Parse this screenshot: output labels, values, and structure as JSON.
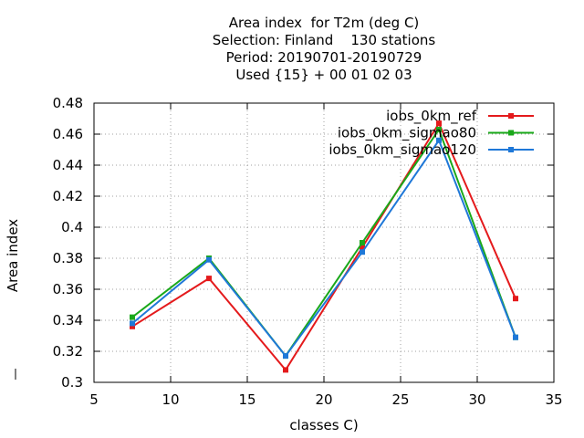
{
  "chart_data": {
    "type": "line",
    "title_lines": [
      "Area index  for T2m (deg C)",
      "Selection: Finland    130 stations",
      "Period: 20190701-20190729",
      "Used {15} + 00 01 02 03"
    ],
    "xlabel": "classes C)",
    "ylabel": "Area index",
    "xlim": [
      5,
      35
    ],
    "ylim": [
      0.3,
      0.48
    ],
    "xticks": [
      5,
      10,
      15,
      20,
      25,
      30,
      35
    ],
    "yticks": [
      0.3,
      0.32,
      0.34,
      0.36,
      0.38,
      0.4,
      0.42,
      0.44,
      0.46,
      0.48
    ],
    "ytick_labels": [
      "0.3",
      "0.32",
      "0.34",
      "0.36",
      "0.38",
      "0.4",
      "0.42",
      "0.44",
      "0.46",
      "0.48"
    ],
    "grid": true,
    "legend_position": "top-right",
    "x": [
      7.5,
      12.5,
      17.5,
      22.5,
      27.5,
      32.5
    ],
    "series": [
      {
        "name": "iobs_0km_ref",
        "color": "#e41a1c",
        "values": [
          0.336,
          0.367,
          0.308,
          0.387,
          0.467,
          0.354
        ]
      },
      {
        "name": "iobs_0km_sigmao80",
        "color": "#1aa81a",
        "values": [
          0.342,
          0.38,
          0.317,
          0.39,
          0.463,
          0.329
        ]
      },
      {
        "name": "iobs_0km_sigmao120",
        "color": "#1f78d8",
        "values": [
          0.338,
          0.379,
          0.317,
          0.384,
          0.456,
          0.329
        ]
      }
    ]
  }
}
